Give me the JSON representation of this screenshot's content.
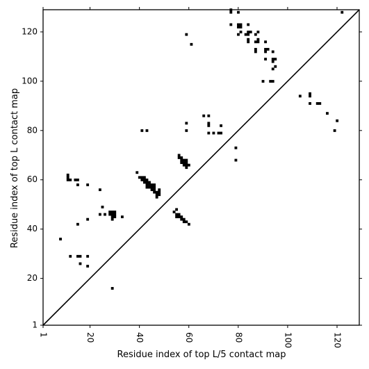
{
  "chart_data": {
    "type": "heatmap",
    "title": "",
    "xlabel": "Residue index of top L/5 contact map",
    "ylabel": "Residue index of top L contact map",
    "xlim": [
      1,
      129
    ],
    "ylim": [
      1,
      129
    ],
    "xticks": [
      1,
      20,
      40,
      60,
      80,
      100,
      120
    ],
    "yticks": [
      1,
      20,
      40,
      60,
      80,
      100,
      120
    ],
    "x_tick_rotation_deg": -90,
    "grid": false,
    "cell_color": "#000000",
    "diagonal_line": true,
    "points": [
      [
        8,
        36
      ],
      [
        11,
        62
      ],
      [
        11,
        61
      ],
      [
        11,
        60
      ],
      [
        12,
        60
      ],
      [
        12,
        29
      ],
      [
        14,
        60
      ],
      [
        15,
        60
      ],
      [
        15,
        58
      ],
      [
        15,
        42
      ],
      [
        15,
        29
      ],
      [
        16,
        29
      ],
      [
        16,
        26
      ],
      [
        19,
        58
      ],
      [
        19,
        44
      ],
      [
        19,
        29
      ],
      [
        19,
        25
      ],
      [
        24,
        56
      ],
      [
        24,
        46
      ],
      [
        25,
        49
      ],
      [
        26,
        46
      ],
      [
        28,
        47
      ],
      [
        28,
        46
      ],
      [
        29,
        47
      ],
      [
        29,
        46
      ],
      [
        29,
        45
      ],
      [
        29,
        44
      ],
      [
        29,
        16
      ],
      [
        30,
        47
      ],
      [
        30,
        46
      ],
      [
        30,
        45
      ],
      [
        33,
        45
      ],
      [
        39,
        63
      ],
      [
        40,
        61
      ],
      [
        41,
        61
      ],
      [
        41,
        60
      ],
      [
        41,
        80
      ],
      [
        42,
        61
      ],
      [
        42,
        60
      ],
      [
        42,
        59
      ],
      [
        43,
        60
      ],
      [
        43,
        59
      ],
      [
        43,
        80
      ],
      [
        43,
        58
      ],
      [
        43,
        57
      ],
      [
        44,
        59
      ],
      [
        44,
        58
      ],
      [
        44,
        57
      ],
      [
        45,
        58
      ],
      [
        45,
        57
      ],
      [
        45,
        56
      ],
      [
        46,
        58
      ],
      [
        46,
        57
      ],
      [
        46,
        56
      ],
      [
        46,
        55
      ],
      [
        47,
        55
      ],
      [
        47,
        54
      ],
      [
        47,
        53
      ],
      [
        48,
        56
      ],
      [
        48,
        55
      ],
      [
        48,
        54
      ],
      [
        54,
        47
      ],
      [
        55,
        48
      ],
      [
        55,
        46
      ],
      [
        55,
        45
      ],
      [
        56,
        70
      ],
      [
        56,
        69
      ],
      [
        56,
        46
      ],
      [
        56,
        45
      ],
      [
        57,
        69
      ],
      [
        57,
        68
      ],
      [
        57,
        67
      ],
      [
        57,
        45
      ],
      [
        57,
        44
      ],
      [
        58,
        68
      ],
      [
        58,
        67
      ],
      [
        58,
        66
      ],
      [
        58,
        44
      ],
      [
        58,
        43
      ],
      [
        59,
        68
      ],
      [
        59,
        67
      ],
      [
        59,
        66
      ],
      [
        59,
        65
      ],
      [
        59,
        43
      ],
      [
        59,
        119
      ],
      [
        59,
        83
      ],
      [
        59,
        80
      ],
      [
        60,
        66
      ],
      [
        60,
        42
      ],
      [
        61,
        115
      ],
      [
        66,
        86
      ],
      [
        68,
        86
      ],
      [
        68,
        83
      ],
      [
        68,
        82
      ],
      [
        68,
        79
      ],
      [
        70,
        79
      ],
      [
        72,
        79
      ],
      [
        73,
        82
      ],
      [
        73,
        79
      ],
      [
        77,
        129
      ],
      [
        77,
        128
      ],
      [
        77,
        123
      ],
      [
        79,
        73
      ],
      [
        79,
        68
      ],
      [
        80,
        128
      ],
      [
        80,
        123
      ],
      [
        80,
        122
      ],
      [
        80,
        119
      ],
      [
        81,
        123
      ],
      [
        81,
        122
      ],
      [
        81,
        120
      ],
      [
        83,
        119
      ],
      [
        84,
        123
      ],
      [
        84,
        120
      ],
      [
        84,
        119
      ],
      [
        84,
        117
      ],
      [
        84,
        116
      ],
      [
        85,
        120
      ],
      [
        87,
        119
      ],
      [
        87,
        116
      ],
      [
        87,
        113
      ],
      [
        87,
        112
      ],
      [
        88,
        120
      ],
      [
        88,
        117
      ],
      [
        88,
        116
      ],
      [
        90,
        100
      ],
      [
        91,
        116
      ],
      [
        91,
        113
      ],
      [
        91,
        112
      ],
      [
        91,
        109
      ],
      [
        92,
        113
      ],
      [
        93,
        100
      ],
      [
        94,
        112
      ],
      [
        94,
        109
      ],
      [
        94,
        108
      ],
      [
        94,
        105
      ],
      [
        94,
        100
      ],
      [
        95,
        109
      ],
      [
        95,
        106
      ],
      [
        105,
        94
      ],
      [
        109,
        95
      ],
      [
        109,
        94
      ],
      [
        109,
        91
      ],
      [
        112,
        91
      ],
      [
        113,
        91
      ],
      [
        116,
        87
      ],
      [
        119,
        80
      ],
      [
        120,
        84
      ],
      [
        122,
        128
      ]
    ]
  }
}
